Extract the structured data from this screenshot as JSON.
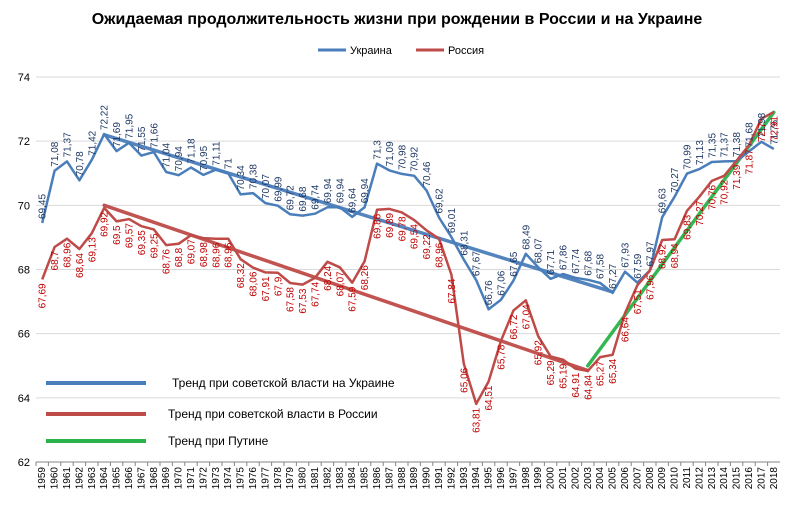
{
  "chart_data": {
    "type": "line",
    "title": "Ожидаемая продолжительность жизни при рождении в России и на Украине",
    "ylim": [
      62,
      74
    ],
    "yticks": [
      62,
      64,
      66,
      68,
      70,
      72,
      74
    ],
    "grid": "horizontal",
    "legend_position": "top",
    "x": [
      "1959",
      "1960",
      "1961",
      "1962",
      "1963",
      "1964",
      "1965",
      "1966",
      "1967",
      "1968",
      "1969",
      "1970",
      "1971",
      "1972",
      "1973",
      "1974",
      "1975",
      "1976",
      "1977",
      "1978",
      "1979",
      "1980",
      "1981",
      "1982",
      "1983",
      "1984",
      "1985",
      "1986",
      "1987",
      "1988",
      "1989",
      "1990",
      "1991",
      "1992",
      "1993",
      "1994",
      "1995",
      "1996",
      "1997",
      "1998",
      "1999",
      "2000",
      "2001",
      "2002",
      "2003",
      "2004",
      "2005",
      "2006",
      "2007",
      "2008",
      "2009",
      "2010",
      "2011",
      "2012",
      "2013",
      "2014",
      "2015",
      "2016",
      "2017",
      "2018"
    ],
    "series": [
      {
        "name": "Украина",
        "color": "#4a7ebb",
        "values": [
          69.45,
          71.08,
          71.37,
          70.78,
          71.42,
          72.22,
          71.69,
          71.95,
          71.55,
          71.66,
          71.04,
          70.94,
          71.18,
          70.95,
          71.11,
          71,
          70.34,
          70.38,
          70.07,
          69.99,
          69.72,
          69.68,
          69.74,
          69.94,
          69.94,
          69.64,
          69.94,
          71.3,
          71.09,
          70.98,
          70.92,
          70.46,
          69.62,
          69.01,
          68.31,
          67.67,
          66.76,
          67.06,
          67.65,
          68.49,
          68.07,
          67.71,
          67.86,
          67.74,
          67.68,
          67.58,
          67.27,
          67.93,
          67.59,
          67.97,
          69.63,
          70.27,
          70.99,
          71.13,
          71.35,
          71.37,
          71.38,
          71.68,
          71.98,
          71.76
        ],
        "labels": [
          "69,45",
          "71,08",
          "71,37",
          "70,78",
          "71,42",
          "72,22",
          "71,69",
          "71,95",
          "71,55",
          "71,66",
          "71,04",
          "70,94",
          "71,18",
          "70,95",
          "71,11",
          "71",
          "70,34",
          "70,38",
          "70,07",
          "69,99",
          "69,72",
          "69,68",
          "69,74",
          "69,94",
          "69,94",
          "69,64",
          "69,94",
          "71,3",
          "71,09",
          "70,98",
          "70,92",
          "70,46",
          "69,62",
          "69,01",
          "68,31",
          "67,67",
          "66,76",
          "67,06",
          "67,65",
          "68,49",
          "68,07",
          "67,71",
          "67,86",
          "67,74",
          "67,68",
          "67,58",
          "67,27",
          "67,93",
          "67,59",
          "67,97",
          "69,63",
          "70,27",
          "70,99",
          "71,13",
          "71,35",
          "71,37",
          "71,38",
          "71,68",
          "71,98",
          "71,76"
        ]
      },
      {
        "name": "Россия",
        "color": "#be4b48",
        "values": [
          67.69,
          68.7,
          68.96,
          68.64,
          69.13,
          69.92,
          69.5,
          69.57,
          69.35,
          69.25,
          68.76,
          68.8,
          69.07,
          68.98,
          68.96,
          68.96,
          68.32,
          68.06,
          67.91,
          67.9,
          67.58,
          67.53,
          67.74,
          68.24,
          68.07,
          67.59,
          68.26,
          69.86,
          69.89,
          69.78,
          69.54,
          69.22,
          68.96,
          67.84,
          65.06,
          63.81,
          64.51,
          65.78,
          66.72,
          67.04,
          65.92,
          65.29,
          65.19,
          64.91,
          64.84,
          65.27,
          65.34,
          66.64,
          67.51,
          67.96,
          68.92,
          68.94,
          69.83,
          70.27,
          70.76,
          70.92,
          71.39,
          71.87,
          72.7,
          72.91
        ],
        "labels": [
          "67,69",
          "68,7",
          "68,96",
          "68,64",
          "69,13",
          "69,92",
          "69,5",
          "69,57",
          "69,35",
          "69,25",
          "68,76",
          "68,8",
          "69,07",
          "68,98",
          "68,96",
          "68,96",
          "68,32",
          "68,06",
          "67,91",
          "67,9",
          "67,58",
          "67,53",
          "67,74",
          "68,24",
          "68,07",
          "67,59",
          "68,26",
          "69,86",
          "69,89",
          "69,78",
          "69,54",
          "69,22",
          "68,96",
          "67,84",
          "65,06",
          "63,81",
          "64,51",
          "65,78",
          "66,72",
          "67,04",
          "65,92",
          "65,29",
          "65,19",
          "64,91",
          "64,84",
          "65,27",
          "65,34",
          "66,64",
          "67,51",
          "67,96",
          "68,92",
          "68,94",
          "69,83",
          "70,27",
          "70,76",
          "70,92",
          "71,39",
          "71,87",
          "72,7",
          "72,91"
        ]
      }
    ],
    "trends": [
      {
        "name": "Тренд при советской власти на Украине",
        "color": "#4a7ebb",
        "from": {
          "x": "1964",
          "y": 72.2
        },
        "to": {
          "x": "2005",
          "y": 67.3
        }
      },
      {
        "name": "Тренд при советской власти в России",
        "color": "#be4b48",
        "from": {
          "x": "1964",
          "y": 70.0
        },
        "to": {
          "x": "2003",
          "y": 64.85
        }
      },
      {
        "name": "Тренд при Путине",
        "color": "#2ab34a",
        "from": {
          "x": "2003",
          "y": 65.0
        },
        "to": {
          "x": "2018",
          "y": 72.9
        }
      }
    ]
  }
}
